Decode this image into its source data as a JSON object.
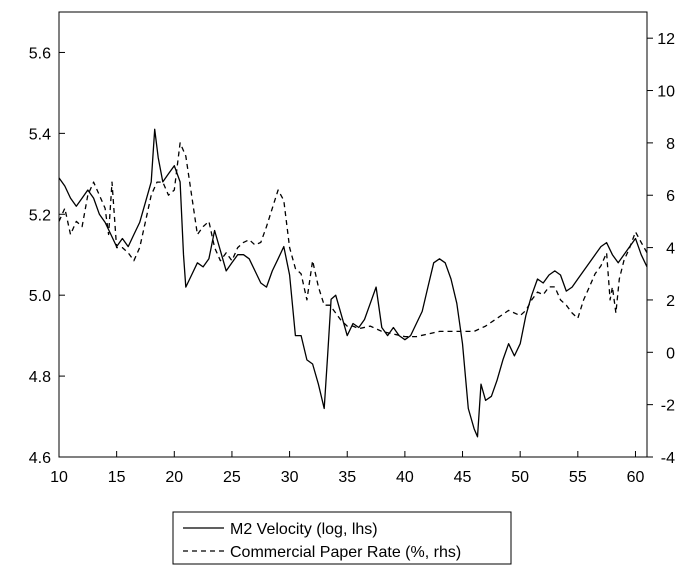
{
  "chart_data": {
    "type": "line",
    "title": "",
    "xlabel": "",
    "ylabel_left": "",
    "ylabel_right": "",
    "xlim": [
      10,
      61
    ],
    "ylim_left": [
      4.6,
      5.7
    ],
    "ylim_right": [
      -4,
      13
    ],
    "x_ticks": [
      10,
      15,
      20,
      25,
      30,
      35,
      40,
      45,
      50,
      55,
      60
    ],
    "y_left_ticks": [
      4.6,
      4.8,
      5.0,
      5.2,
      5.4,
      5.6
    ],
    "y_left_tick_labels": [
      "4.6",
      "4.8",
      "5.0",
      "5.2",
      "5.4",
      "5.6"
    ],
    "y_right_ticks": [
      -4,
      -2,
      0,
      2,
      4,
      6,
      8,
      10,
      12
    ],
    "y_right_tick_labels": [
      "-4",
      "-2",
      "0",
      "2",
      "4",
      "6",
      "8",
      "10",
      "12"
    ],
    "grid": false,
    "legend_position": "bottom-center",
    "series": [
      {
        "name": "M2 Velocity (log, lhs)",
        "axis": "left",
        "style": "solid",
        "color": "#000000",
        "x": [
          10,
          10.5,
          11,
          11.5,
          12,
          12.5,
          13,
          13.5,
          14,
          14.5,
          15,
          15.5,
          16,
          16.5,
          17,
          17.5,
          18,
          18.3,
          18.6,
          19,
          19.5,
          20,
          20.5,
          20.8,
          21,
          21.5,
          22,
          22.5,
          23,
          23.5,
          24,
          24.5,
          25,
          25.5,
          26,
          26.5,
          27,
          27.5,
          28,
          28.5,
          29,
          29.5,
          30,
          30.5,
          31,
          31.5,
          32,
          32.5,
          33,
          33.3,
          33.6,
          34,
          34.5,
          35,
          35.5,
          36,
          36.5,
          37,
          37.5,
          38,
          38.5,
          39,
          39.5,
          40,
          40.5,
          41,
          41.5,
          42,
          42.5,
          43,
          43.5,
          44,
          44.5,
          45,
          45.5,
          46,
          46.3,
          46.6,
          47,
          47.5,
          48,
          48.5,
          49,
          49.5,
          50,
          50.5,
          51,
          51.5,
          52,
          52.5,
          53,
          53.5,
          54,
          54.5,
          55,
          55.5,
          56,
          56.5,
          57,
          57.5,
          58,
          58.5,
          59,
          59.5,
          60,
          60.5,
          61
        ],
        "y": [
          5.29,
          5.27,
          5.24,
          5.22,
          5.24,
          5.26,
          5.24,
          5.2,
          5.18,
          5.15,
          5.12,
          5.14,
          5.12,
          5.15,
          5.18,
          5.23,
          5.28,
          5.41,
          5.34,
          5.28,
          5.3,
          5.32,
          5.28,
          5.1,
          5.02,
          5.05,
          5.08,
          5.07,
          5.09,
          5.16,
          5.11,
          5.06,
          5.08,
          5.1,
          5.1,
          5.09,
          5.06,
          5.03,
          5.02,
          5.06,
          5.09,
          5.12,
          5.05,
          4.9,
          4.9,
          4.84,
          4.83,
          4.78,
          4.72,
          4.85,
          4.99,
          5.0,
          4.95,
          4.9,
          4.93,
          4.92,
          4.94,
          4.98,
          5.02,
          4.92,
          4.9,
          4.92,
          4.9,
          4.89,
          4.9,
          4.93,
          4.96,
          5.02,
          5.08,
          5.09,
          5.08,
          5.04,
          4.98,
          4.88,
          4.72,
          4.67,
          4.65,
          4.78,
          4.74,
          4.75,
          4.79,
          4.84,
          4.88,
          4.85,
          4.88,
          4.95,
          5.0,
          5.04,
          5.03,
          5.05,
          5.06,
          5.05,
          5.01,
          5.02,
          5.04,
          5.06,
          5.08,
          5.1,
          5.12,
          5.13,
          5.1,
          5.08,
          5.1,
          5.12,
          5.14,
          5.1,
          5.07
        ]
      },
      {
        "name": "Commercial Paper Rate (%, rhs)",
        "axis": "right",
        "style": "dashed",
        "color": "#000000",
        "x": [
          10,
          10.5,
          11,
          11.5,
          12,
          12.5,
          13,
          13.5,
          14,
          14.3,
          14.6,
          15,
          15.5,
          16,
          16.5,
          17,
          17.5,
          18,
          18.5,
          19,
          19.5,
          20,
          20.5,
          21,
          21.5,
          22,
          22.5,
          23,
          23.5,
          24,
          24.5,
          25,
          25.5,
          26,
          26.5,
          27,
          27.5,
          28,
          28.5,
          29,
          29.5,
          30,
          30.5,
          31,
          31.5,
          32,
          32.5,
          33,
          33.5,
          34,
          34.5,
          35,
          35.5,
          36,
          37,
          38,
          39,
          40,
          41,
          42,
          43,
          44,
          45,
          46,
          47,
          48,
          49,
          50,
          50.5,
          51,
          51.5,
          52,
          52.5,
          53,
          53.5,
          54,
          54.5,
          55,
          55.5,
          56,
          56.5,
          57,
          57.5,
          57.8,
          58,
          58.3,
          58.6,
          59,
          59.5,
          60,
          60.5,
          61
        ],
        "y": [
          5,
          5.5,
          4.5,
          5,
          4.8,
          6,
          6.5,
          6,
          5.5,
          4.5,
          6.5,
          4,
          4,
          3.8,
          3.5,
          4,
          5,
          6,
          6.5,
          6.5,
          6,
          6.2,
          8,
          7.5,
          6,
          4.5,
          4.8,
          5,
          4,
          3.5,
          3.8,
          3.5,
          4,
          4.2,
          4.3,
          4.1,
          4.2,
          4.8,
          5.5,
          6.2,
          5.8,
          4,
          3.2,
          3,
          2,
          3.5,
          2.5,
          1.8,
          1.8,
          1.5,
          1.2,
          1,
          1,
          0.9,
          1,
          0.8,
          0.7,
          0.6,
          0.6,
          0.7,
          0.8,
          0.8,
          0.8,
          0.8,
          1,
          1.3,
          1.6,
          1.4,
          1.6,
          2,
          2.3,
          2.2,
          2.5,
          2.5,
          2,
          1.8,
          1.5,
          1.3,
          2,
          2.5,
          3,
          3.3,
          3.8,
          2,
          2.5,
          1.5,
          2.8,
          3.5,
          4,
          4.6,
          4.2,
          3.8
        ]
      }
    ]
  }
}
